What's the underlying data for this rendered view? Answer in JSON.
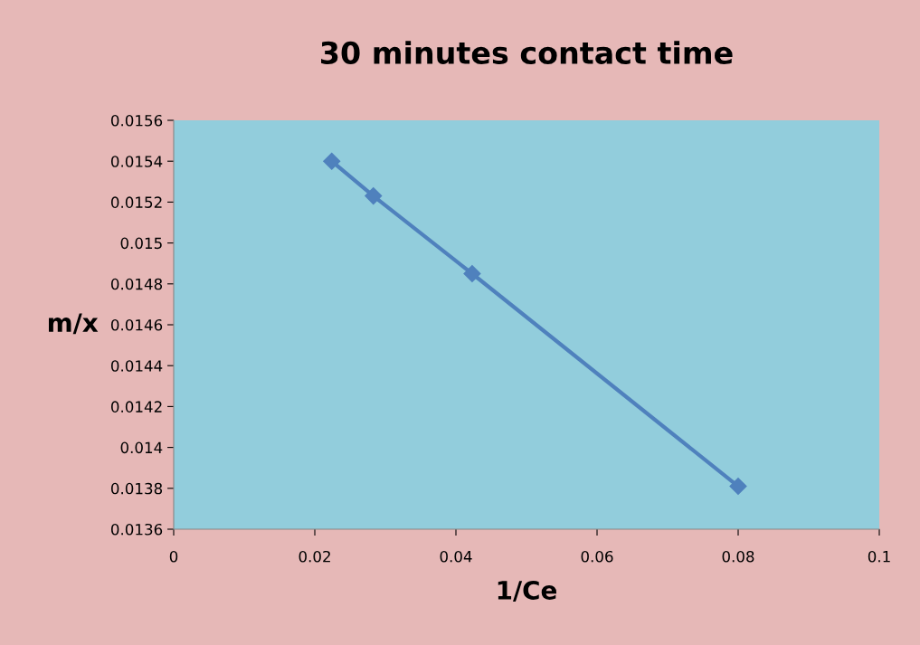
{
  "chart_data": {
    "type": "line",
    "title": "30 minutes contact time",
    "xlabel": "1/Ce",
    "ylabel": "m/x",
    "x": [
      0.0224,
      0.0283,
      0.0423,
      0.08
    ],
    "series": [
      {
        "color": "#4f81bd",
        "values": [
          0.0154,
          0.01523,
          0.01485,
          0.01381
        ]
      }
    ],
    "line_style": "solid",
    "marker": "diamond",
    "grid": false,
    "legend": false,
    "xlim": [
      0,
      0.1
    ],
    "xticks": [
      0,
      0.02,
      0.04,
      0.06,
      0.08,
      0.1
    ],
    "ylim": [
      0.0136,
      0.0156
    ],
    "yticks": [
      0.0136,
      0.0138,
      0.014,
      0.0142,
      0.0144,
      0.0146,
      0.0148,
      0.015,
      0.0152,
      0.0154,
      0.0156
    ]
  }
}
